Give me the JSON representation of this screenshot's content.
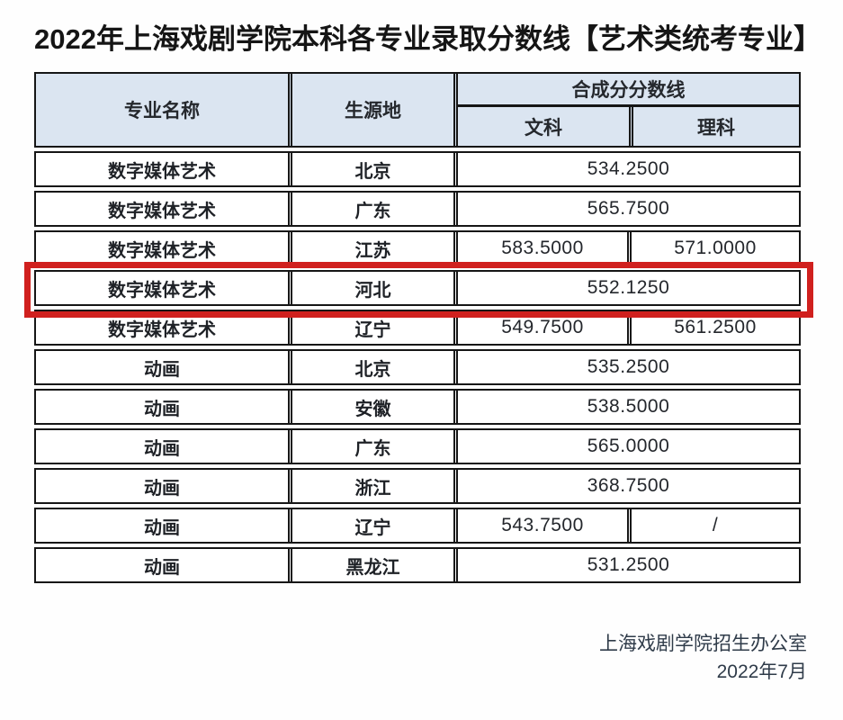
{
  "title": "2022年上海戏剧学院本科各专业录取分数线【艺术类统考专业】",
  "table": {
    "headers": {
      "major": "专业名称",
      "origin": "生源地",
      "composite": "合成分分数线",
      "liberal_arts": "文科",
      "science": "理科"
    },
    "rows": [
      {
        "major": "数字媒体艺术",
        "origin": "北京",
        "score": "534.2500"
      },
      {
        "major": "数字媒体艺术",
        "origin": "广东",
        "score": "565.7500"
      },
      {
        "major": "数字媒体艺术",
        "origin": "江苏",
        "wenke": "583.5000",
        "like": "571.0000"
      },
      {
        "major": "数字媒体艺术",
        "origin": "河北",
        "score": "552.1250",
        "highlighted": true
      },
      {
        "major": "数字媒体艺术",
        "origin": "辽宁",
        "wenke": "549.7500",
        "like": "561.2500"
      },
      {
        "major": "动画",
        "origin": "北京",
        "score": "535.2500"
      },
      {
        "major": "动画",
        "origin": "安徽",
        "score": "538.5000"
      },
      {
        "major": "动画",
        "origin": "广东",
        "score": "565.0000"
      },
      {
        "major": "动画",
        "origin": "浙江",
        "score": "368.7500"
      },
      {
        "major": "动画",
        "origin": "辽宁",
        "wenke": "543.7500",
        "like": "/"
      },
      {
        "major": "动画",
        "origin": "黑龙江",
        "score": "531.2500"
      }
    ],
    "colors": {
      "header_bg": "#dbe5f1",
      "border": "#161616",
      "highlight_red": "#d0201e"
    }
  },
  "footer": {
    "org": "上海戏剧学院招生办公室",
    "date": "2022年7月"
  }
}
